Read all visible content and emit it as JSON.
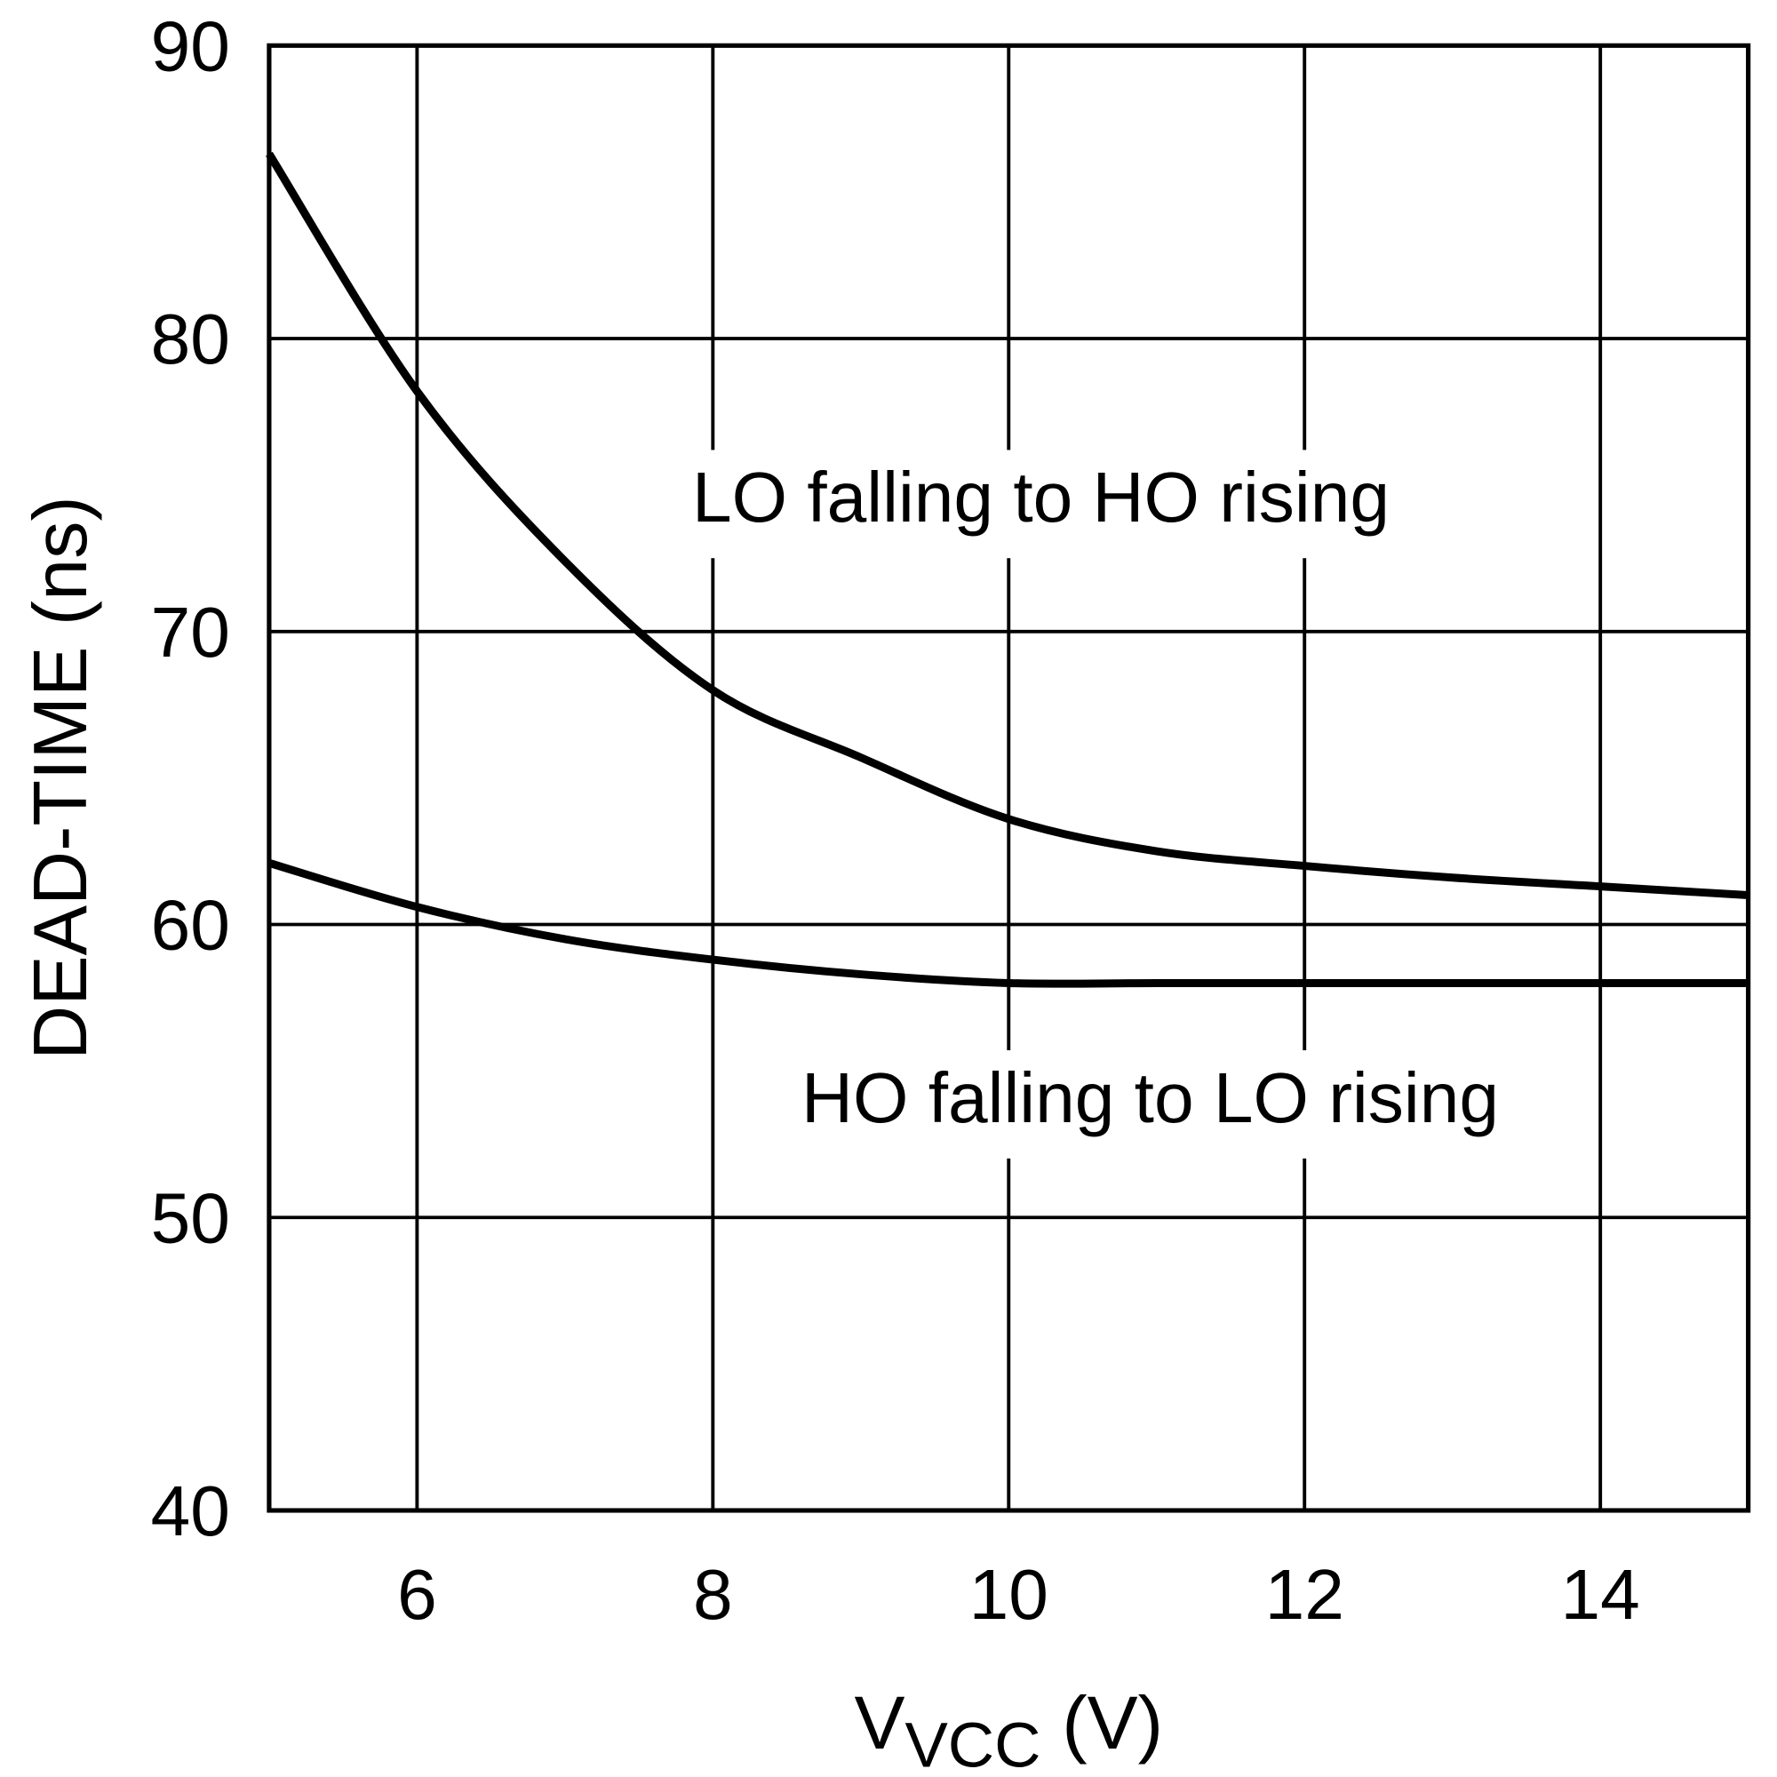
{
  "chart_data": {
    "type": "line",
    "xlabel_main": "V",
    "xlabel_sub": "VCC",
    "xlabel_unit": " (V)",
    "ylabel": "DEAD-TIME (ns)",
    "xlim": [
      5,
      15
    ],
    "ylim": [
      40,
      90
    ],
    "xticks": [
      6,
      8,
      10,
      12,
      14
    ],
    "yticks": [
      40,
      50,
      60,
      70,
      80,
      90
    ],
    "grid": true,
    "line_color": "#000000",
    "x": [
      5,
      6,
      7,
      8,
      9,
      10,
      11,
      12,
      13,
      14,
      15
    ],
    "series": [
      {
        "name": "LO falling to HO rising",
        "values": [
          86.3,
          78.2,
          72.4,
          68.0,
          65.7,
          63.6,
          62.5,
          62.0,
          61.6,
          61.3,
          61.0
        ]
      },
      {
        "name": "HO falling to LO rising",
        "values": [
          62.1,
          60.6,
          59.5,
          58.8,
          58.3,
          58.0,
          58.0,
          58.0,
          58.0,
          58.0,
          58.0
        ]
      }
    ],
    "annotations": [
      "LO falling to HO rising",
      "HO falling to LO rising"
    ]
  }
}
